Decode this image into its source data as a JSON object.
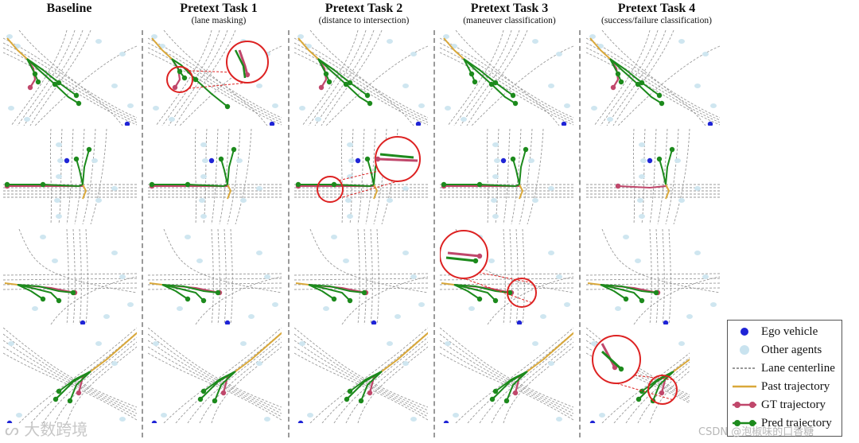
{
  "columns": [
    {
      "title": "Baseline",
      "subtitle": ""
    },
    {
      "title": "Pretext Task 1",
      "subtitle": "(lane masking)"
    },
    {
      "title": "Pretext Task 2",
      "subtitle": "(distance to intersection)"
    },
    {
      "title": "Pretext Task 3",
      "subtitle": "(maneuver classification)"
    },
    {
      "title": "Pretext Task 4",
      "subtitle": "(success/failure classification)"
    }
  ],
  "legend": [
    {
      "label": "Ego vehicle",
      "icon": "ego-dot-icon",
      "color": "#1f24d6"
    },
    {
      "label": "Other agents",
      "icon": "agent-dot-icon",
      "color": "#c9e3ef"
    },
    {
      "label": "Lane centerline",
      "icon": "dashed-line-icon",
      "color": "#888888"
    },
    {
      "label": "Past trajectory",
      "icon": "past-line-icon",
      "color": "#d9a83a"
    },
    {
      "label": "GT trajectory",
      "icon": "gt-line-icon",
      "color": "#c0476b"
    },
    {
      "label": "Pred trajectory",
      "icon": "pred-line-icon",
      "color": "#1c8a1c"
    }
  ],
  "watermarks": {
    "left": "大数跨境",
    "right": "CSDN @泡椒味的口香糖"
  }
}
